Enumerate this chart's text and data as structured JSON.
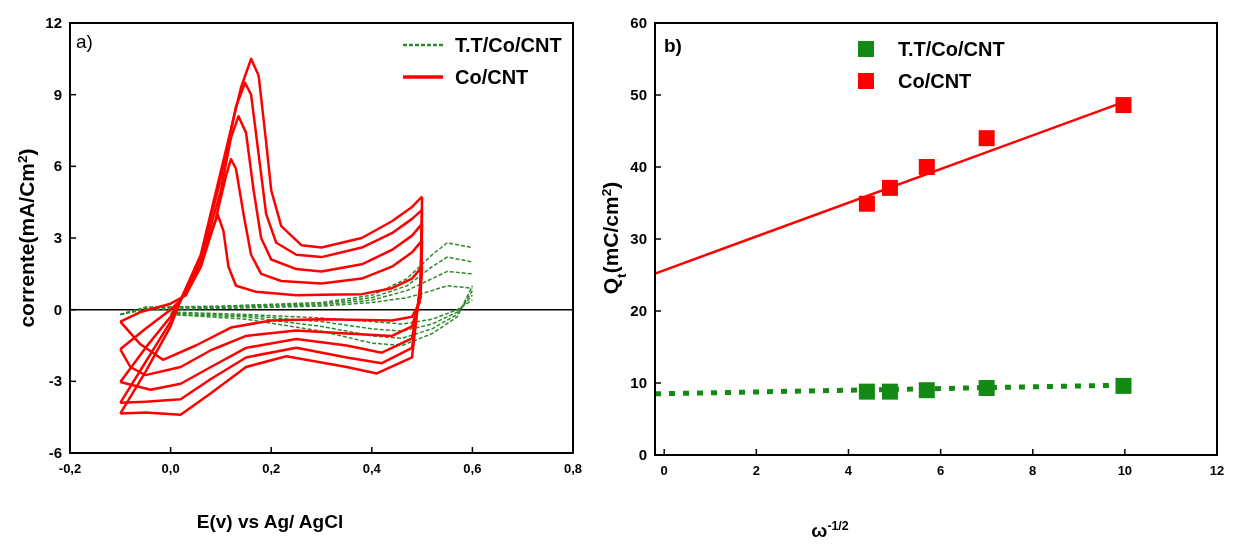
{
  "chart_data": [
    {
      "type": "line",
      "xlabel": "E(v) vs Ag/ AgCl",
      "ylabel": "corrente(mA/Cm$^{2}$)",
      "annotations": [
        "a)"
      ],
      "xlim": [
        -0.2,
        0.8
      ],
      "ylim": [
        -6,
        12
      ],
      "xticks": [
        {
          "value": -0.2,
          "label": "-0,2"
        },
        {
          "value": 0,
          "label": "0,0"
        },
        {
          "value": 0.2,
          "label": "0,2"
        },
        {
          "value": 0.4,
          "label": "0,4"
        },
        {
          "value": 0.6,
          "label": "0,6"
        },
        {
          "value": 0.8,
          "label": "0,8"
        }
      ],
      "yticks": [
        -6,
        -3,
        0,
        3,
        6,
        9,
        12
      ],
      "legend": "top right",
      "ref_lines": [
        {
          "axis": "y",
          "value": 0,
          "color": "#000000"
        }
      ],
      "series": [
        {
          "name": "T.T/Co/CNT",
          "color": "#2e8b2e",
          "line_style": "dashed",
          "x": [
            -0.1,
            -0.05,
            0.1,
            0.3,
            0.4,
            0.47,
            0.52,
            0.55,
            0.6
          ],
          "values": [
            -0.2,
            0.1,
            0.15,
            0.3,
            0.6,
            1.3,
            2.3,
            2.8,
            2.6
          ]
        },
        {
          "color": "#2e8b2e",
          "line_style": "dashed",
          "x": [
            0.0,
            0.15,
            0.3,
            0.4,
            0.46,
            0.52,
            0.57,
            0.6
          ],
          "values": [
            -0.2,
            -0.4,
            -0.9,
            -1.4,
            -1.5,
            -1.0,
            -0.3,
            1.0
          ]
        },
        {
          "color": "#2e8b2e",
          "line_style": "dashed",
          "x": [
            -0.1,
            -0.05,
            0.1,
            0.3,
            0.4,
            0.47,
            0.52,
            0.55,
            0.6
          ],
          "values": [
            -0.2,
            0.1,
            0.12,
            0.25,
            0.5,
            1.0,
            1.8,
            2.2,
            2.0
          ]
        },
        {
          "color": "#2e8b2e",
          "line_style": "dashed",
          "x": [
            0.0,
            0.15,
            0.3,
            0.4,
            0.46,
            0.52,
            0.57,
            0.6
          ],
          "values": [
            -0.2,
            -0.3,
            -0.7,
            -1.1,
            -1.2,
            -0.8,
            -0.2,
            0.8
          ]
        },
        {
          "color": "#2e8b2e",
          "line_style": "dashed",
          "x": [
            -0.1,
            -0.05,
            0.1,
            0.3,
            0.4,
            0.47,
            0.52,
            0.55,
            0.6
          ],
          "values": [
            -0.2,
            0.05,
            0.1,
            0.2,
            0.4,
            0.8,
            1.3,
            1.6,
            1.5
          ]
        },
        {
          "color": "#2e8b2e",
          "line_style": "dashed",
          "x": [
            0.0,
            0.15,
            0.3,
            0.4,
            0.46,
            0.52,
            0.57,
            0.6
          ],
          "values": [
            -0.15,
            -0.25,
            -0.5,
            -0.8,
            -0.9,
            -0.6,
            -0.1,
            0.6
          ]
        },
        {
          "color": "#2e8b2e",
          "line_style": "dashed",
          "x": [
            -0.1,
            -0.05,
            0.1,
            0.3,
            0.4,
            0.47,
            0.52,
            0.55,
            0.6
          ],
          "values": [
            -0.2,
            0.0,
            0.05,
            0.15,
            0.3,
            0.5,
            0.8,
            1.0,
            0.9
          ]
        },
        {
          "color": "#2e8b2e",
          "line_style": "dashed",
          "x": [
            0.0,
            0.15,
            0.3,
            0.4,
            0.46,
            0.52,
            0.57,
            0.6
          ],
          "values": [
            -0.1,
            -0.2,
            -0.35,
            -0.5,
            -0.6,
            -0.4,
            0.0,
            0.4
          ]
        },
        {
          "name": "Co/CNT",
          "color": "#ff0000",
          "line_style": "solid",
          "x": [
            -0.1,
            -0.06,
            0.0,
            0.03,
            0.06,
            0.08,
            0.094,
            0.105,
            0.115,
            0.13,
            0.17,
            0.25,
            0.3,
            0.38,
            0.44,
            0.48,
            0.5
          ],
          "values": [
            -0.5,
            -0.1,
            0.25,
            0.6,
            1.8,
            3.2,
            3.97,
            3.3,
            1.8,
            1.0,
            0.75,
            0.6,
            0.62,
            0.65,
            0.9,
            1.3,
            1.8
          ]
        },
        {
          "color": "#ff0000",
          "line_style": "solid",
          "x": [
            -0.1,
            -0.06,
            -0.015,
            0.05,
            0.12,
            0.2,
            0.3,
            0.44,
            0.48,
            0.495,
            0.5
          ],
          "values": [
            -0.5,
            -1.45,
            -2.1,
            -1.5,
            -0.75,
            -0.45,
            -0.4,
            -0.45,
            -0.3,
            0.3,
            1.8
          ]
        },
        {
          "color": "#ff0000",
          "line_style": "solid",
          "x": [
            -0.1,
            -0.05,
            0.0,
            0.02,
            0.06,
            0.09,
            0.11,
            0.12,
            0.13,
            0.145,
            0.16,
            0.18,
            0.22,
            0.3,
            0.38,
            0.44,
            0.48,
            0.5
          ],
          "values": [
            -1.66,
            -0.8,
            0.0,
            0.4,
            1.8,
            3.8,
            5.6,
            6.3,
            5.9,
            4.0,
            2.3,
            1.5,
            1.2,
            1.1,
            1.3,
            1.8,
            2.4,
            2.9
          ]
        },
        {
          "color": "#ff0000",
          "line_style": "solid",
          "x": [
            -0.1,
            -0.08,
            -0.05,
            0.02,
            0.08,
            0.15,
            0.25,
            0.35,
            0.44,
            0.48,
            0.497,
            0.5
          ],
          "values": [
            -1.66,
            -2.4,
            -2.74,
            -2.4,
            -1.7,
            -1.1,
            -0.87,
            -1.0,
            -1.1,
            -0.7,
            0.5,
            2.9
          ]
        },
        {
          "color": "#ff0000",
          "line_style": "solid",
          "x": [
            -0.1,
            -0.05,
            0.0,
            0.02,
            0.06,
            0.1,
            0.12,
            0.135,
            0.15,
            0.165,
            0.18,
            0.2,
            0.25,
            0.3,
            0.38,
            0.44,
            0.48,
            0.5
          ],
          "values": [
            -3.03,
            -1.6,
            -0.3,
            0.4,
            2.0,
            5.0,
            7.2,
            8.1,
            7.4,
            5.0,
            3.0,
            2.1,
            1.7,
            1.6,
            1.9,
            2.5,
            3.1,
            3.6
          ]
        },
        {
          "color": "#ff0000",
          "line_style": "solid",
          "x": [
            -0.1,
            -0.04,
            0.02,
            0.08,
            0.15,
            0.25,
            0.35,
            0.42,
            0.48,
            0.497,
            0.5
          ],
          "values": [
            -3.03,
            -3.35,
            -3.1,
            -2.4,
            -1.6,
            -1.23,
            -1.5,
            -1.8,
            -1.2,
            0.8,
            3.6
          ]
        },
        {
          "color": "#ff0000",
          "line_style": "solid",
          "x": [
            -0.1,
            -0.05,
            0.0,
            0.02,
            0.06,
            0.1,
            0.13,
            0.148,
            0.16,
            0.175,
            0.19,
            0.21,
            0.25,
            0.3,
            0.38,
            0.44,
            0.48,
            0.5
          ],
          "values": [
            -3.9,
            -2.2,
            -0.5,
            0.4,
            2.2,
            5.5,
            8.5,
            9.5,
            9.0,
            6.5,
            4.0,
            2.8,
            2.3,
            2.2,
            2.6,
            3.2,
            3.8,
            4.18
          ]
        },
        {
          "color": "#ff0000",
          "line_style": "solid",
          "x": [
            -0.1,
            -0.05,
            0.02,
            0.08,
            0.15,
            0.25,
            0.35,
            0.42,
            0.48,
            0.497,
            0.5
          ],
          "values": [
            -3.9,
            -3.85,
            -3.75,
            -2.9,
            -2.0,
            -1.59,
            -2.0,
            -2.24,
            -1.6,
            1.0,
            4.18
          ]
        },
        {
          "color": "#ff0000",
          "line_style": "solid",
          "x": [
            -0.1,
            -0.05,
            0.0,
            0.02,
            0.06,
            0.1,
            0.14,
            0.16,
            0.175,
            0.19,
            0.2,
            0.22,
            0.26,
            0.3,
            0.38,
            0.44,
            0.48,
            0.5
          ],
          "values": [
            -4.35,
            -2.6,
            -0.7,
            0.4,
            2.3,
            5.8,
            9.3,
            10.5,
            9.8,
            7.0,
            5.0,
            3.5,
            2.7,
            2.6,
            3.0,
            3.7,
            4.3,
            4.73
          ]
        },
        {
          "color": "#ff0000",
          "line_style": "solid",
          "x": [
            -0.1,
            -0.05,
            0.02,
            0.08,
            0.15,
            0.23,
            0.35,
            0.41,
            0.48,
            0.497,
            0.5
          ],
          "values": [
            -4.35,
            -4.3,
            -4.4,
            -3.5,
            -2.4,
            -1.95,
            -2.4,
            -2.67,
            -2.0,
            1.2,
            4.73
          ]
        }
      ]
    },
    {
      "type": "scatter",
      "xlabel": "ω$^{-1/2}$",
      "ylabel": "Q$_{t}$(mC/cm$^{2}$)",
      "annotations": [
        "b)"
      ],
      "xlim": [
        -0.2,
        12
      ],
      "ylim": [
        0,
        60
      ],
      "xticks": [
        0,
        2,
        4,
        6,
        8,
        10,
        12
      ],
      "yticks": [
        0,
        10,
        20,
        30,
        40,
        50,
        60
      ],
      "legend": "top",
      "series": [
        {
          "name": "T.T/Co/CNT",
          "color": "#138a13",
          "marker": "square",
          "x": [
            4.4,
            4.9,
            5.7,
            7.0,
            9.97
          ],
          "values": [
            8.8,
            8.8,
            9.0,
            9.3,
            9.6
          ]
        },
        {
          "name": "Co/CNT",
          "color": "#ff0000",
          "marker": "square",
          "x": [
            4.4,
            4.9,
            5.7,
            7.0,
            9.97
          ],
          "values": [
            34.9,
            37.1,
            40.0,
            44.0,
            48.6
          ]
        },
        {
          "type": "line",
          "color": "#138a13",
          "line_style": "dotted",
          "x": [
            -0.2,
            9.97
          ],
          "values": [
            8.5,
            9.7
          ]
        },
        {
          "type": "line",
          "color": "#ff0000",
          "line_style": "solid",
          "x": [
            -0.2,
            9.97
          ],
          "values": [
            25.2,
            49.0
          ]
        }
      ]
    }
  ]
}
